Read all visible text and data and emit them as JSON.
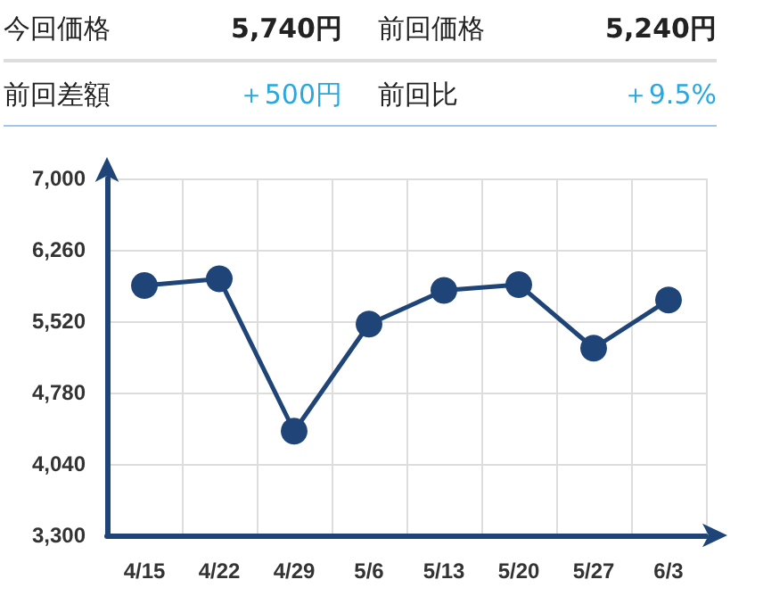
{
  "chart_data": {
    "type": "line",
    "annotations": [
      "今回価格",
      "5,740円",
      "前回価格",
      "5,240円",
      "前回差額",
      "＋500円",
      "前回比",
      "＋9.5%"
    ],
    "categories": [
      "4/15",
      "4/22",
      "4/29",
      "5/6",
      "5/13",
      "5/20",
      "5/27",
      "6/3"
    ],
    "series": [
      {
        "color": "#1f4478",
        "values": [
          5890,
          5960,
          4380,
          5490,
          5840,
          5900,
          5240,
          5740
        ]
      }
    ],
    "ylim": [
      3300,
      7000
    ],
    "yticks": [
      {
        "value": 3300,
        "label": "3,300"
      },
      {
        "value": 4040,
        "label": "4,040"
      },
      {
        "value": 4780,
        "label": "4,780"
      },
      {
        "value": 5520,
        "label": "5,520"
      },
      {
        "value": 6260,
        "label": "6,260"
      },
      {
        "value": 7000,
        "label": "7,000"
      }
    ],
    "grid": true,
    "marker": "circle",
    "line_style": "solid"
  }
}
